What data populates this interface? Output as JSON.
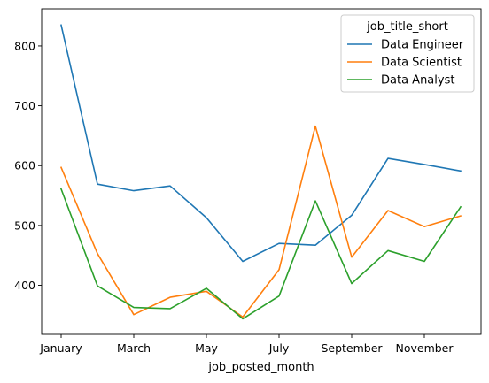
{
  "chart_data": {
    "type": "line",
    "x": [
      "January",
      "February",
      "March",
      "April",
      "May",
      "June",
      "July",
      "August",
      "September",
      "October",
      "November",
      "December"
    ],
    "x_tick_labels": [
      "January",
      "March",
      "May",
      "July",
      "September",
      "November"
    ],
    "xlabel": "job_posted_month",
    "ylabel": "",
    "y_ticks": [
      400,
      500,
      600,
      700,
      800
    ],
    "ylim": [
      318,
      862
    ],
    "grid": false,
    "legend": {
      "title": "job_title_short",
      "placement": "top-right"
    },
    "series": [
      {
        "name": "Data Engineer",
        "color": "#1f77b4",
        "values": [
          835,
          569,
          558,
          566,
          513,
          440,
          470,
          467,
          517,
          612,
          602,
          591
        ]
      },
      {
        "name": "Data Scientist",
        "color": "#ff7f0e",
        "values": [
          597,
          453,
          351,
          380,
          390,
          347,
          426,
          666,
          447,
          525,
          498,
          516
        ]
      },
      {
        "name": "Data Analyst",
        "color": "#2ca02c",
        "values": [
          561,
          399,
          363,
          361,
          395,
          344,
          382,
          541,
          403,
          458,
          440,
          531
        ]
      }
    ]
  }
}
